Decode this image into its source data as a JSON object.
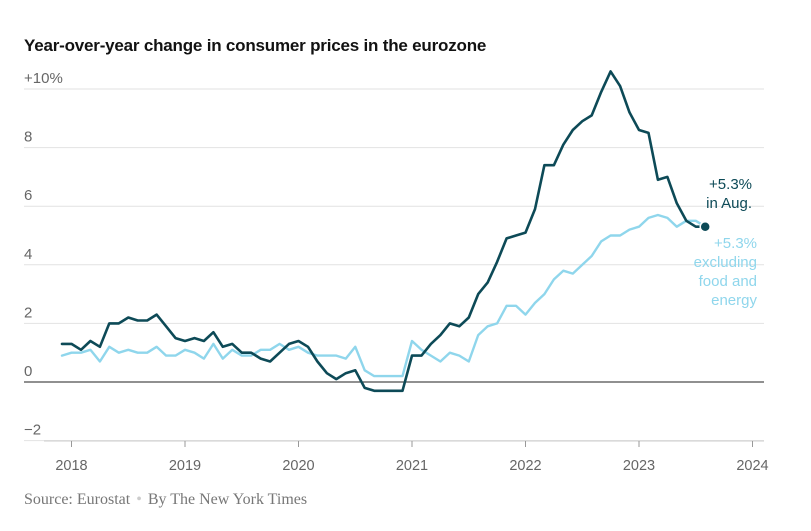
{
  "chart_data": {
    "type": "line",
    "title": "Year-over-year change in consumer prices in the eurozone",
    "ylim": [
      -2.5,
      11
    ],
    "y_ticks": [
      {
        "value": 10,
        "label": "+10%"
      },
      {
        "value": 8,
        "label": "8"
      },
      {
        "value": 6,
        "label": "6"
      },
      {
        "value": 4,
        "label": "4"
      },
      {
        "value": 2,
        "label": "2"
      },
      {
        "value": 0,
        "label": "0"
      },
      {
        "value": -2,
        "label": "−2"
      }
    ],
    "x_ticks": [
      "2018",
      "2019",
      "2020",
      "2021",
      "2022",
      "2023",
      "2024"
    ],
    "x_start": "2017-12",
    "grid": "horizontal",
    "series": [
      {
        "name": "+5.3% in Aug.",
        "color": "#0d4a57",
        "values": [
          1.3,
          1.3,
          1.1,
          1.4,
          1.2,
          2.0,
          2.0,
          2.2,
          2.1,
          2.1,
          2.3,
          1.9,
          1.5,
          1.4,
          1.5,
          1.4,
          1.7,
          1.2,
          1.3,
          1.0,
          1.0,
          0.8,
          0.7,
          1.0,
          1.3,
          1.4,
          1.2,
          0.7,
          0.3,
          0.1,
          0.3,
          0.4,
          -0.2,
          -0.3,
          -0.3,
          -0.3,
          -0.3,
          0.9,
          0.9,
          1.3,
          1.6,
          2.0,
          1.9,
          2.2,
          3.0,
          3.4,
          4.1,
          4.9,
          5.0,
          5.1,
          5.9,
          7.4,
          7.4,
          8.1,
          8.6,
          8.9,
          9.1,
          9.9,
          10.6,
          10.1,
          9.2,
          8.6,
          8.5,
          6.9,
          7.0,
          6.1,
          5.5,
          5.3,
          5.3
        ],
        "label_lines": [
          "+5.3%",
          "in Aug."
        ]
      },
      {
        "name": "+5.3% excluding food and energy",
        "color": "#8fd6ec",
        "values": [
          0.9,
          1.0,
          1.0,
          1.1,
          0.7,
          1.2,
          1.0,
          1.1,
          1.0,
          1.0,
          1.2,
          0.9,
          0.9,
          1.1,
          1.0,
          0.8,
          1.3,
          0.8,
          1.1,
          0.9,
          0.9,
          1.1,
          1.1,
          1.3,
          1.1,
          1.2,
          1.0,
          0.9,
          0.9,
          0.9,
          0.8,
          1.2,
          0.4,
          0.2,
          0.2,
          0.2,
          0.2,
          1.4,
          1.1,
          0.9,
          0.7,
          1.0,
          0.9,
          0.7,
          1.6,
          1.9,
          2.0,
          2.6,
          2.6,
          2.3,
          2.7,
          3.0,
          3.5,
          3.8,
          3.7,
          4.0,
          4.3,
          4.8,
          5.0,
          5.0,
          5.2,
          5.3,
          5.6,
          5.7,
          5.6,
          5.3,
          5.5,
          5.5,
          5.3
        ],
        "label_lines": [
          "+5.3%",
          "excluding",
          "food and",
          "energy"
        ]
      }
    ]
  },
  "footer": {
    "source": "Source: Eurostat",
    "separator": "•",
    "credit": "By The New York Times"
  }
}
